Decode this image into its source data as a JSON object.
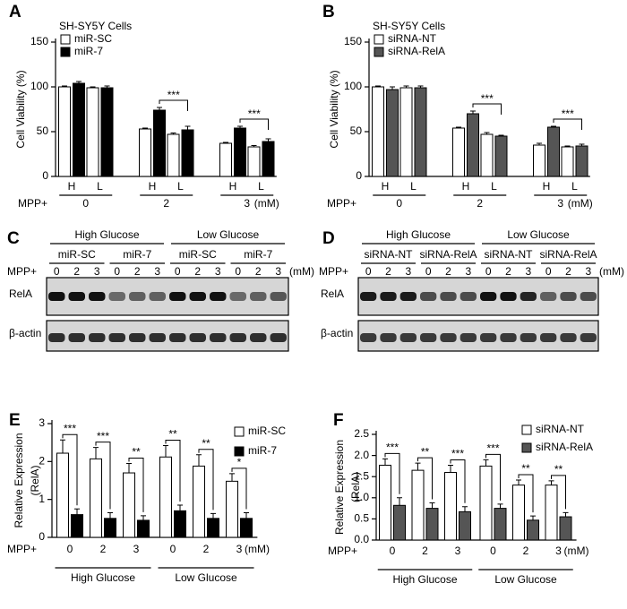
{
  "chart_data": [
    {
      "panel": "A",
      "type": "bar",
      "legend_title": "SH-SY5Y Cells",
      "ylabel": [
        "Cell Viability (%)"
      ],
      "xlabel": "MPP+",
      "x_unit": "(mM)",
      "categories": [
        "H",
        "L",
        "H",
        "L",
        "H",
        "L"
      ],
      "groups": [
        "0",
        "2",
        "3"
      ],
      "group_annotations": [
        null,
        "***",
        "***"
      ],
      "series": [
        {
          "name": "miR-SC",
          "color": "#ffffff",
          "values": [
            100,
            99,
            53,
            47,
            37,
            33
          ],
          "errors": [
            1,
            1,
            1,
            1.5,
            1,
            1.5
          ]
        },
        {
          "name": "miR-7",
          "color": "#000000",
          "values": [
            104,
            99,
            74,
            52,
            54,
            39
          ],
          "errors": [
            2,
            2,
            3,
            4,
            2,
            3
          ]
        }
      ],
      "ylim": [
        0,
        150
      ],
      "yticks": [
        0,
        50,
        100,
        150
      ]
    },
    {
      "panel": "B",
      "type": "bar",
      "legend_title": "SH-SY5Y Cells",
      "ylabel": [
        "Cell Viability (%)"
      ],
      "xlabel": "MPP+",
      "x_unit": "(mM)",
      "categories": [
        "H",
        "L",
        "H",
        "L",
        "H",
        "L"
      ],
      "groups": [
        "0",
        "2",
        "3"
      ],
      "group_annotations": [
        null,
        "***",
        "***"
      ],
      "series": [
        {
          "name": "siRNA-NT",
          "color": "#ffffff",
          "values": [
            100,
            99,
            54,
            47,
            35,
            33
          ],
          "errors": [
            1,
            2,
            1,
            2,
            2,
            1
          ]
        },
        {
          "name": "siRNA-RelA",
          "color": "#555555",
          "values": [
            97,
            99,
            70,
            45,
            55,
            34
          ],
          "errors": [
            3,
            2,
            3,
            1,
            1,
            2
          ]
        }
      ],
      "ylim": [
        0,
        150
      ],
      "yticks": [
        0,
        50,
        100,
        150
      ]
    },
    {
      "panel": "E",
      "type": "bar",
      "ylabel": [
        "Relative Expression",
        "(RelA)"
      ],
      "xlabel": "MPP+",
      "x_unit": "(mM)",
      "categories": [
        "0",
        "2",
        "3",
        "0",
        "2",
        "3"
      ],
      "groups": [
        "High Glucose",
        "Low Glucose"
      ],
      "significance": [
        "***",
        "***",
        "**",
        "**",
        "**",
        "*"
      ],
      "series": [
        {
          "name": "miR-SC",
          "color": "#ffffff",
          "values": [
            2.22,
            2.07,
            1.7,
            2.12,
            1.88,
            1.48
          ],
          "errors": [
            0.35,
            0.3,
            0.25,
            0.3,
            0.3,
            0.2
          ]
        },
        {
          "name": "miR-7",
          "color": "#000000",
          "values": [
            0.6,
            0.5,
            0.45,
            0.7,
            0.5,
            0.5
          ],
          "errors": [
            0.15,
            0.15,
            0.12,
            0.15,
            0.13,
            0.15
          ]
        }
      ],
      "ylim": [
        0,
        3
      ],
      "yticks": [
        0,
        1,
        2,
        3
      ]
    },
    {
      "panel": "F",
      "type": "bar",
      "ylabel": [
        "Relative Expression",
        "(RelA)"
      ],
      "xlabel": "MPP+",
      "x_unit": "(mM)",
      "categories": [
        "0",
        "2",
        "3",
        "0",
        "2",
        "3"
      ],
      "groups": [
        "High Glucose",
        "Low Glucose"
      ],
      "significance": [
        "***",
        "**",
        "***",
        "***",
        "**",
        "**"
      ],
      "series": [
        {
          "name": "siRNA-NT",
          "color": "#ffffff",
          "values": [
            1.77,
            1.65,
            1.6,
            1.75,
            1.3,
            1.3
          ],
          "errors": [
            0.15,
            0.17,
            0.17,
            0.15,
            0.12,
            0.1
          ]
        },
        {
          "name": "siRNA-RelA",
          "color": "#555555",
          "values": [
            0.82,
            0.75,
            0.67,
            0.75,
            0.47,
            0.55
          ],
          "errors": [
            0.18,
            0.13,
            0.12,
            0.1,
            0.1,
            0.1
          ]
        }
      ],
      "ylim": [
        0,
        2.5
      ],
      "yticks": [
        {
          "value": 0,
          "label": "0.0"
        },
        {
          "value": 0.5,
          "label": "0.5"
        },
        {
          "value": 1,
          "label": "1.0"
        },
        {
          "value": 1.5,
          "label": "1.5"
        },
        {
          "value": 2,
          "label": "2.0"
        },
        {
          "value": 2.5,
          "label": "2.5"
        }
      ]
    }
  ],
  "blots": [
    {
      "panel": "C",
      "conditions": [
        "High Glucose",
        "Low Glucose"
      ],
      "groups": [
        "miR-SC",
        "miR-7",
        "miR-SC",
        "miR-7"
      ],
      "doses": [
        "0",
        "2",
        "3"
      ],
      "dose_label": "MPP+",
      "dose_unit": "(mM)",
      "rows": [
        "RelA",
        "β-actin"
      ]
    },
    {
      "panel": "D",
      "conditions": [
        "High Glucose",
        "Low Glucose"
      ],
      "groups": [
        "siRNA-NT",
        "siRNA-RelA",
        "siRNA-NT",
        "siRNA-RelA"
      ],
      "doses": [
        "0",
        "2",
        "3"
      ],
      "dose_label": "MPP+",
      "dose_unit": "(mM)",
      "rows": [
        "RelA",
        "β-actin"
      ]
    }
  ]
}
